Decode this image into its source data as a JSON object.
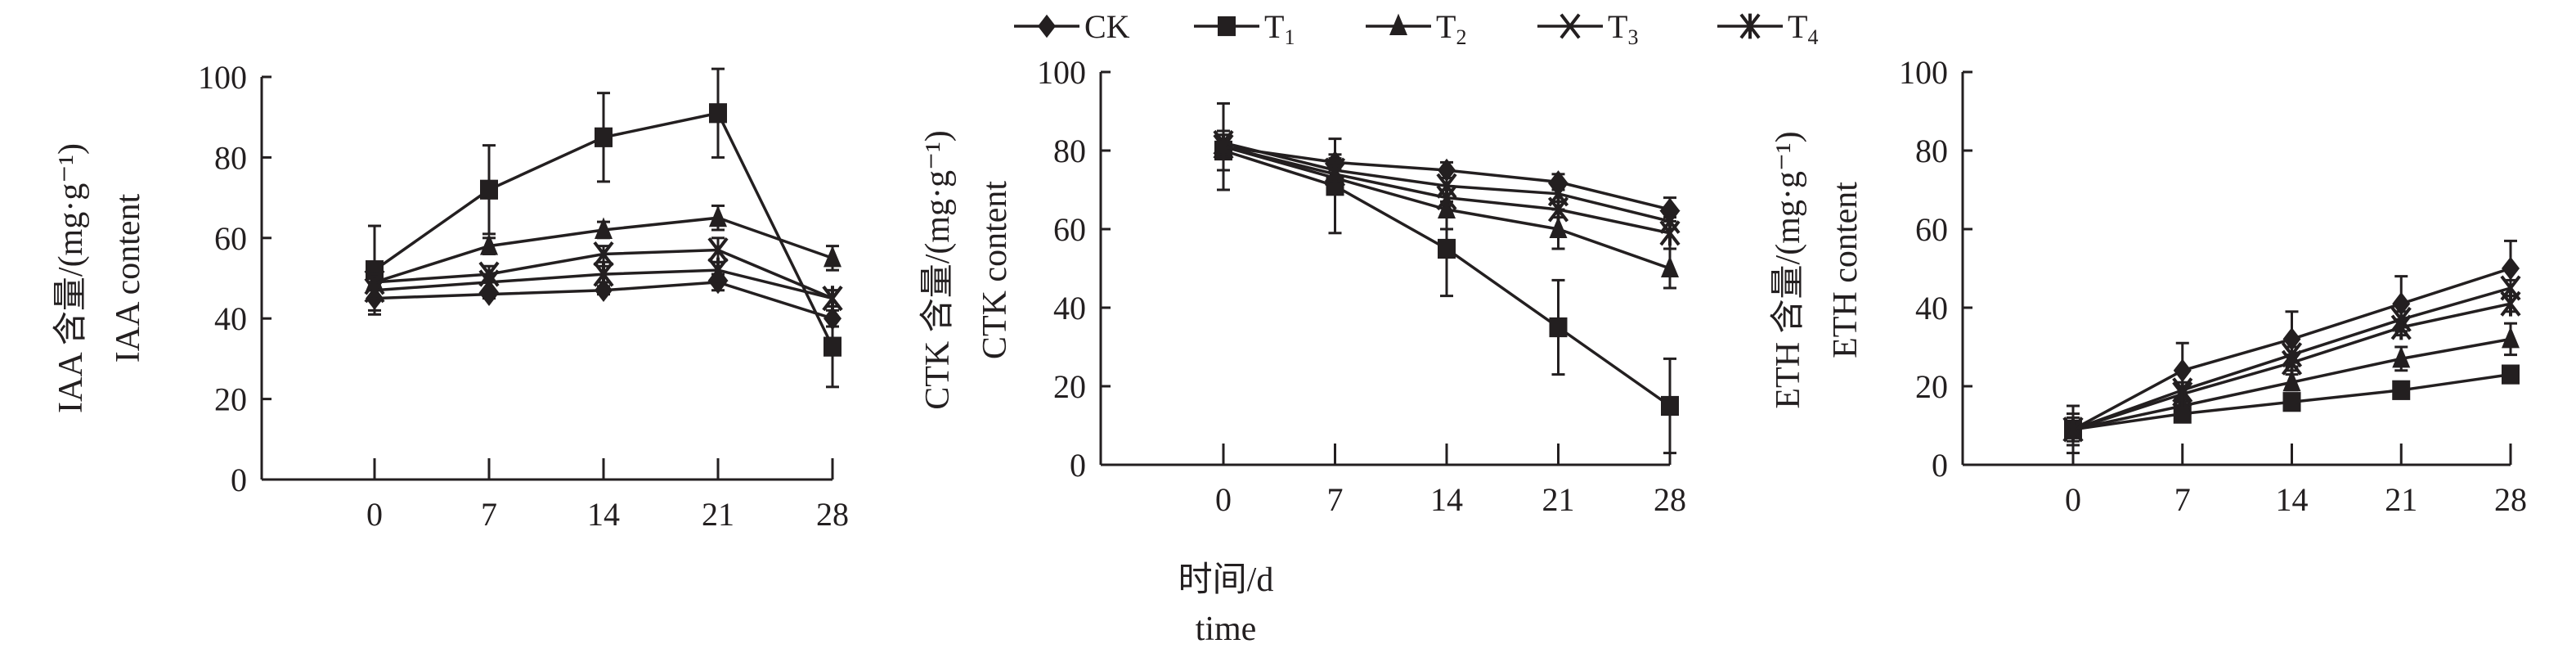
{
  "chart_data": [
    {
      "type": "line",
      "id": "iaa",
      "ylabel_cn": "IAA 含量/(mg·g⁻¹)",
      "ylabel_en": "IAA content",
      "x": [
        0,
        7,
        14,
        21,
        28
      ],
      "xticks": [
        "0",
        "7",
        "14",
        "21",
        "28"
      ],
      "ylim": [
        0,
        100
      ],
      "yticks": [
        "0",
        "20",
        "40",
        "60",
        "80",
        "100"
      ],
      "series": [
        {
          "name": "CK",
          "values": [
            45,
            46,
            47,
            49,
            40
          ],
          "err": [
            3,
            1,
            1,
            2,
            2
          ]
        },
        {
          "name": "T1",
          "values": [
            52,
            72,
            85,
            91,
            33
          ],
          "err": [
            11,
            11,
            11,
            11,
            10
          ]
        },
        {
          "name": "T2",
          "values": [
            49,
            58,
            62,
            65,
            55
          ],
          "err": [
            2,
            2,
            2,
            3,
            3
          ]
        },
        {
          "name": "T3",
          "values": [
            49,
            51,
            56,
            57,
            45
          ],
          "err": [
            2,
            2,
            2,
            3,
            2
          ]
        },
        {
          "name": "T4",
          "values": [
            47,
            49,
            51,
            52,
            45
          ],
          "err": [
            2,
            2,
            2,
            2,
            2
          ]
        }
      ]
    },
    {
      "type": "line",
      "id": "ctk",
      "ylabel_cn": "CTK 含量/(mg·g⁻¹)",
      "ylabel_en": "CTK content",
      "xlabel_cn": "时间/d",
      "xlabel_en": "time",
      "x": [
        0,
        7,
        14,
        21,
        28
      ],
      "xticks": [
        "0",
        "7",
        "14",
        "21",
        "28"
      ],
      "ylim": [
        0,
        100
      ],
      "yticks": [
        "0",
        "20",
        "40",
        "60",
        "80",
        "100"
      ],
      "series": [
        {
          "name": "CK",
          "values": [
            81,
            77,
            75,
            72,
            65
          ],
          "err": [
            11,
            2,
            2,
            2,
            3
          ]
        },
        {
          "name": "T1",
          "values": [
            80,
            71,
            55,
            35,
            15
          ],
          "err": [
            5,
            12,
            12,
            12,
            12
          ]
        },
        {
          "name": "T2",
          "values": [
            81,
            73,
            65,
            60,
            50
          ],
          "err": [
            3,
            2,
            5,
            5,
            5
          ]
        },
        {
          "name": "T3",
          "values": [
            82,
            75,
            71,
            69,
            62
          ],
          "err": [
            2,
            3,
            2,
            2,
            2
          ]
        },
        {
          "name": "T4",
          "values": [
            81,
            74,
            68,
            65,
            59
          ],
          "err": [
            2,
            2,
            2,
            2,
            4
          ]
        }
      ]
    },
    {
      "type": "line",
      "id": "eth",
      "ylabel_cn": "ETH 含量/(mg·g⁻¹)",
      "ylabel_en": "ETH content",
      "x": [
        0,
        7,
        14,
        21,
        28
      ],
      "xticks": [
        "0",
        "7",
        "14",
        "21",
        "28"
      ],
      "ylim": [
        0,
        100
      ],
      "yticks": [
        "0",
        "20",
        "40",
        "60",
        "80",
        "100"
      ],
      "series": [
        {
          "name": "CK",
          "values": [
            9,
            24,
            32,
            41,
            50
          ],
          "err": [
            4,
            7,
            7,
            7,
            7
          ]
        },
        {
          "name": "T1",
          "values": [
            9,
            13,
            16,
            19,
            23
          ],
          "err": [
            6,
            1,
            1,
            1,
            1
          ]
        },
        {
          "name": "T2",
          "values": [
            9,
            15,
            21,
            27,
            32
          ],
          "err": [
            3,
            1,
            2,
            3,
            4
          ]
        },
        {
          "name": "T3",
          "values": [
            9,
            19,
            28,
            37,
            45
          ],
          "err": [
            2,
            2,
            2,
            2,
            2
          ]
        },
        {
          "name": "T4",
          "values": [
            9,
            18,
            26,
            35,
            41
          ],
          "err": [
            2,
            2,
            2,
            2,
            2
          ]
        }
      ]
    }
  ],
  "legend": [
    {
      "label": "CK",
      "sub": "",
      "marker": "diamond"
    },
    {
      "label": "T",
      "sub": "1",
      "marker": "square"
    },
    {
      "label": "T",
      "sub": "2",
      "marker": "triangle"
    },
    {
      "label": "T",
      "sub": "3",
      "marker": "x-cross"
    },
    {
      "label": "T",
      "sub": "4",
      "marker": "asterisk"
    }
  ],
  "colors": {
    "ink": "#231f20"
  }
}
